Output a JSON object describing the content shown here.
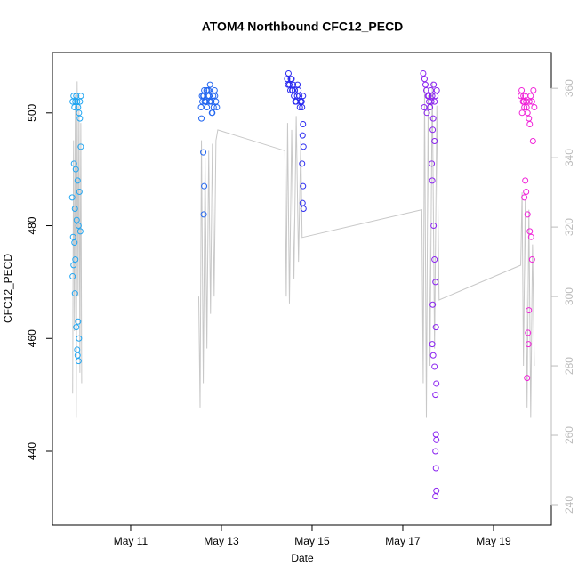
{
  "chart_data": {
    "type": "scatter",
    "title": "ATOM4 Northbound CFC12_PECD",
    "xlabel": "Date",
    "ylabel": "CFC12_PECD",
    "xlim": [
      9.275,
      20.275
    ],
    "ylim": [
      426.9,
      510.7
    ],
    "y2lim": [
      234.1,
      370.3
    ],
    "xticks": [
      {
        "value": 11,
        "label": "May 11"
      },
      {
        "value": 13,
        "label": "May 13"
      },
      {
        "value": 15,
        "label": "May 15"
      },
      {
        "value": 17,
        "label": "May 17"
      },
      {
        "value": 19,
        "label": "May 19"
      }
    ],
    "yticks": [
      440,
      460,
      480,
      500
    ],
    "y2ticks": [
      240,
      260,
      280,
      300,
      320,
      340,
      360
    ],
    "y2color": "#bbbbbb",
    "series": [
      {
        "type": "scatter",
        "color": "#22a6f2",
        "x": [
          9.72,
          9.74,
          9.76,
          9.78,
          9.8,
          9.82,
          9.84,
          9.86,
          9.88,
          9.9,
          9.75,
          9.79,
          9.83,
          9.87,
          9.71,
          9.77,
          9.81,
          9.85,
          9.89,
          9.73,
          9.76,
          9.78,
          9.74,
          9.72,
          9.77,
          9.84,
          9.8,
          9.86,
          9.82,
          9.83,
          9.85,
          9.9,
          9.88
        ],
        "values": [
          502,
          503,
          501,
          502,
          503,
          502,
          501,
          500,
          499,
          494,
          491,
          490,
          488,
          486,
          485,
          483,
          481,
          480,
          479,
          478,
          477,
          474,
          473,
          471,
          468,
          463,
          462,
          460,
          458,
          457,
          456,
          503,
          502
        ]
      },
      {
        "type": "scatter",
        "color": "#2266f0",
        "x": [
          12.55,
          12.58,
          12.6,
          12.62,
          12.65,
          12.68,
          12.7,
          12.72,
          12.75,
          12.78,
          12.8,
          12.82,
          12.85,
          12.88,
          12.9,
          12.57,
          12.63,
          12.67,
          12.73,
          12.77,
          12.83,
          12.56,
          12.61,
          12.69,
          12.74,
          12.79,
          12.6,
          12.62,
          12.61,
          12.86
        ],
        "values": [
          501,
          502,
          503,
          504,
          502,
          501,
          503,
          504,
          505,
          502,
          500,
          503,
          504,
          502,
          501,
          503,
          502,
          504,
          503,
          502,
          501,
          499,
          503,
          504,
          502,
          500,
          493,
          487,
          482,
          503
        ]
      },
      {
        "type": "scatter",
        "color": "#2a2af0",
        "x": [
          14.45,
          14.48,
          14.5,
          14.52,
          14.55,
          14.58,
          14.6,
          14.62,
          14.65,
          14.68,
          14.7,
          14.72,
          14.75,
          14.78,
          14.8,
          14.47,
          14.53,
          14.57,
          14.63,
          14.67,
          14.73,
          14.77,
          14.8,
          14.79,
          14.81,
          14.78,
          14.8,
          14.79,
          14.81,
          14.56
        ],
        "values": [
          506,
          507,
          505,
          504,
          506,
          505,
          503,
          504,
          502,
          505,
          504,
          503,
          502,
          501,
          503,
          505,
          506,
          504,
          502,
          503,
          501,
          502,
          498,
          496,
          494,
          491,
          487,
          484,
          483,
          504
        ]
      },
      {
        "type": "scatter",
        "color": "#8a22f0",
        "x": [
          17.45,
          17.48,
          17.5,
          17.52,
          17.55,
          17.58,
          17.6,
          17.62,
          17.65,
          17.68,
          17.7,
          17.72,
          17.75,
          17.47,
          17.53,
          17.57,
          17.63,
          17.67,
          17.66,
          17.7,
          17.64,
          17.65,
          17.68,
          17.7,
          17.72,
          17.66,
          17.73,
          17.65,
          17.67,
          17.7,
          17.74,
          17.72,
          17.73,
          17.74,
          17.72,
          17.73,
          17.72,
          17.74
        ],
        "values": [
          507,
          506,
          505,
          504,
          503,
          502,
          501,
          504,
          503,
          505,
          502,
          503,
          504,
          501,
          500,
          503,
          502,
          499,
          497,
          495,
          491,
          488,
          480,
          474,
          470,
          466,
          462,
          459,
          457,
          455,
          452,
          450,
          443,
          442,
          440,
          437,
          432,
          433
        ]
      },
      {
        "type": "scatter",
        "color": "#f022d8",
        "x": [
          19.6,
          19.62,
          19.65,
          19.68,
          19.7,
          19.72,
          19.75,
          19.78,
          19.8,
          19.82,
          19.85,
          19.88,
          19.9,
          19.63,
          19.67,
          19.87,
          19.7,
          19.72,
          19.68,
          19.75,
          19.8,
          19.83,
          19.85,
          19.78,
          19.76,
          19.77,
          19.74,
          19.66,
          19.73,
          19.79
        ],
        "values": [
          503,
          504,
          502,
          501,
          503,
          502,
          500,
          499,
          498,
          503,
          502,
          504,
          501,
          500,
          502,
          495,
          488,
          486,
          485,
          482,
          479,
          478,
          474,
          465,
          461,
          459,
          453,
          503,
          501,
          502
        ]
      },
      {
        "type": "line",
        "color": "#c8c8c8",
        "axis": "y2",
        "x": [
          9.72,
          9.74,
          9.76,
          9.78,
          9.8,
          9.82,
          9.84,
          9.86,
          9.88,
          9.9,
          9.92,
          null,
          12.5,
          12.53,
          12.56,
          12.6,
          12.64,
          12.68,
          12.72,
          12.76,
          12.8,
          12.84,
          12.88,
          12.92,
          14.4,
          14.43,
          14.46,
          14.5,
          14.55,
          14.6,
          14.65,
          14.7,
          14.75,
          14.78,
          17.42,
          17.45,
          17.48,
          17.52,
          17.56,
          17.6,
          17.65,
          17.7,
          17.75,
          17.8,
          19.6,
          19.63,
          19.66,
          19.7,
          19.74,
          19.78,
          19.82,
          19.86,
          19.9
        ],
        "values": [
          272,
          345,
          290,
          358,
          265,
          362,
          300,
          355,
          278,
          350,
          275,
          null,
          300,
          268,
          345,
          275,
          340,
          285,
          342,
          295,
          344,
          300,
          345,
          348,
          342,
          300,
          350,
          298,
          348,
          305,
          352,
          310,
          345,
          317,
          325,
          275,
          360,
          265,
          358,
          280,
          362,
          285,
          355,
          299,
          309,
          330,
          280,
          328,
          268,
          325,
          265,
          315,
          280
        ]
      }
    ]
  }
}
